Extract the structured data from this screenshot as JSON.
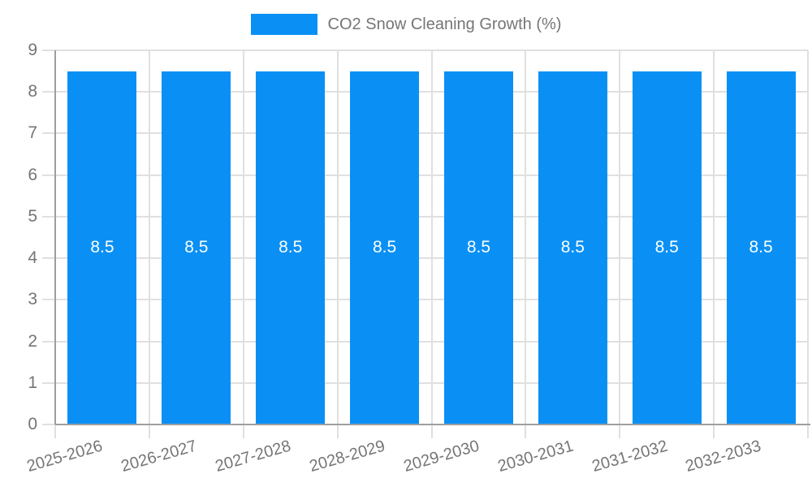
{
  "chart_data": {
    "type": "bar",
    "categories": [
      "2025-2026",
      "2026-2027",
      "2027-2028",
      "2028-2029",
      "2029-2030",
      "2030-2031",
      "2031-2032",
      "2032-2033"
    ],
    "series": [
      {
        "name": "CO2 Snow Cleaning Growth (%)",
        "values": [
          8.5,
          8.5,
          8.5,
          8.5,
          8.5,
          8.5,
          8.5,
          8.5
        ]
      }
    ],
    "bar_labels": [
      "8.5",
      "8.5",
      "8.5",
      "8.5",
      "8.5",
      "8.5",
      "8.5",
      "8.5"
    ],
    "title": "",
    "xlabel": "",
    "ylabel": "",
    "ylim": [
      0,
      9
    ],
    "yticks": [
      0,
      1,
      2,
      3,
      4,
      5,
      6,
      7,
      8,
      9
    ],
    "grid": true,
    "legend_position": "top-center",
    "colors": {
      "bar": "#0a90f5",
      "grid": "#e0e0e0",
      "axis": "#9e9e9e",
      "tick_text": "#757575",
      "bar_label": "#ffffff",
      "background": "#ffffff"
    }
  }
}
